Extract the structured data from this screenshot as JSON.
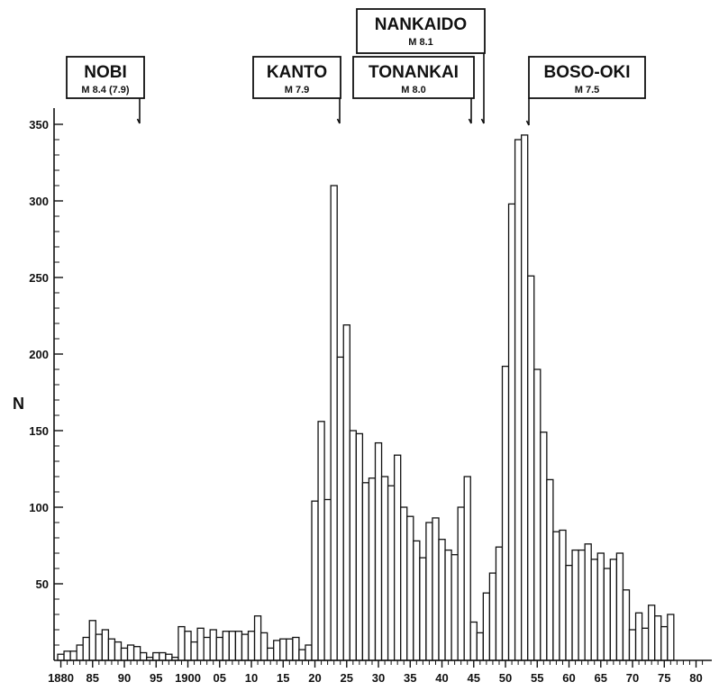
{
  "chart_data": {
    "type": "bar",
    "ylabel": "N",
    "xlabel": "",
    "title": "",
    "ylim": [
      0,
      365
    ],
    "xlim": [
      1879,
      1881.5
    ],
    "yticks": [
      50,
      100,
      150,
      200,
      250,
      300,
      350
    ],
    "xticklabels": [
      {
        "year": 1880,
        "label": "1880"
      },
      {
        "year": 1885,
        "label": "85"
      },
      {
        "year": 1890,
        "label": "90"
      },
      {
        "year": 1895,
        "label": "95"
      },
      {
        "year": 1900,
        "label": "1900"
      },
      {
        "year": 1905,
        "label": "05"
      },
      {
        "year": 1910,
        "label": "10"
      },
      {
        "year": 1915,
        "label": "15"
      },
      {
        "year": 1920,
        "label": "20"
      },
      {
        "year": 1925,
        "label": "25"
      },
      {
        "year": 1930,
        "label": "30"
      },
      {
        "year": 1935,
        "label": "35"
      },
      {
        "year": 1940,
        "label": "40"
      },
      {
        "year": 1945,
        "label": "45"
      },
      {
        "year": 1950,
        "label": "50"
      },
      {
        "year": 1955,
        "label": "55"
      },
      {
        "year": 1960,
        "label": "60"
      },
      {
        "year": 1965,
        "label": "65"
      },
      {
        "year": 1970,
        "label": "70"
      },
      {
        "year": 1975,
        "label": "75"
      },
      {
        "year": 1980,
        "label": "80"
      }
    ],
    "years": [
      1880,
      1881,
      1882,
      1883,
      1884,
      1885,
      1886,
      1887,
      1888,
      1889,
      1890,
      1891,
      1892,
      1893,
      1894,
      1895,
      1896,
      1897,
      1898,
      1899,
      1900,
      1901,
      1902,
      1903,
      1904,
      1905,
      1906,
      1907,
      1908,
      1909,
      1910,
      1911,
      1912,
      1913,
      1914,
      1915,
      1916,
      1917,
      1918,
      1919,
      1920,
      1921,
      1922,
      1923,
      1924,
      1925,
      1926,
      1927,
      1928,
      1929,
      1930,
      1931,
      1932,
      1933,
      1934,
      1935,
      1936,
      1937,
      1938,
      1939,
      1940,
      1941,
      1942,
      1943,
      1944,
      1945,
      1946,
      1947,
      1948,
      1949,
      1950,
      1951,
      1952,
      1953,
      1954,
      1955,
      1956,
      1957,
      1958,
      1959,
      1960,
      1961,
      1962,
      1963,
      1964,
      1965,
      1966,
      1967,
      1968,
      1969,
      1970,
      1971,
      1972,
      1973,
      1974,
      1975,
      1976
    ],
    "values": [
      4,
      6,
      6,
      10,
      15,
      26,
      17,
      20,
      14,
      12,
      8,
      10,
      9,
      5,
      2,
      5,
      5,
      4,
      2,
      22,
      19,
      12,
      21,
      15,
      20,
      15,
      19,
      19,
      19,
      17,
      19,
      29,
      18,
      8,
      13,
      14,
      14,
      15,
      7,
      10,
      104,
      156,
      105,
      310,
      198,
      219,
      150,
      148,
      116,
      119,
      142,
      120,
      114,
      134,
      100,
      94,
      78,
      67,
      90,
      93,
      79,
      72,
      69,
      100,
      120,
      25,
      18,
      44,
      57,
      74,
      192,
      298,
      340,
      343,
      251,
      190,
      149,
      118,
      84,
      85,
      62,
      72,
      72,
      76,
      66,
      70,
      60,
      66,
      70,
      46,
      20,
      31,
      21,
      36,
      29,
      22,
      30
    ],
    "events": [
      {
        "name": "NOBI",
        "magnitude": "M 8.4 (7.9)",
        "year": 1891
      },
      {
        "name": "KANTO",
        "magnitude": "M 7.9",
        "year": 1923
      },
      {
        "name": "TONANKAI",
        "magnitude": "M 8.0",
        "year": 1944
      },
      {
        "name": "NANKAIDO",
        "magnitude": "M 8.1",
        "year": 1946
      },
      {
        "name": "BOSO-OKI",
        "magnitude": "M 7.5",
        "year": 1953
      }
    ]
  }
}
